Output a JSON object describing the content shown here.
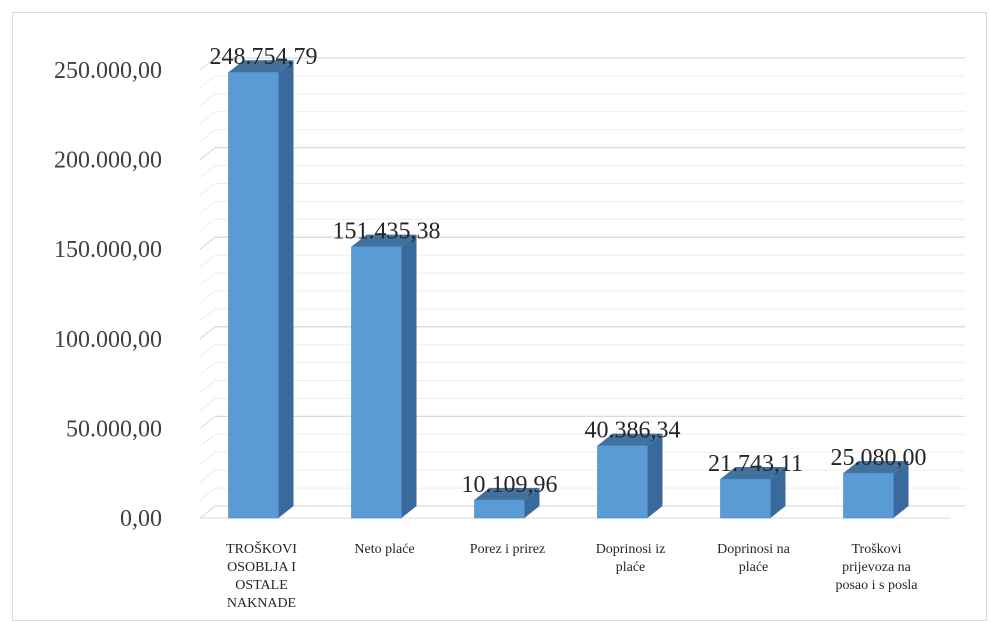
{
  "chart_data": {
    "type": "bar",
    "style": "3d-column",
    "categories": [
      [
        "TROŠKOVI",
        "OSOBLJA I",
        "OSTALE",
        "NAKNADE"
      ],
      [
        "Neto plaće"
      ],
      [
        "Porez i prirez"
      ],
      [
        "Doprinosi iz",
        "plaće"
      ],
      [
        "Doprinosi na",
        "plaće"
      ],
      [
        "Troškovi",
        "prijevoza na",
        "posao i s posla"
      ]
    ],
    "values": [
      248754.79,
      151435.38,
      10109.96,
      40386.34,
      21743.11,
      25080.0
    ],
    "data_labels": [
      "248.754,79",
      "151.435,38",
      "10.109,96",
      "40.386,34",
      "21.743,11",
      "25.080,00"
    ],
    "yticks": [
      {
        "value": 0,
        "label": "0,00"
      },
      {
        "value": 50000,
        "label": "50.000,00"
      },
      {
        "value": 100000,
        "label": "100.000,00"
      },
      {
        "value": 150000,
        "label": "150.000,00"
      },
      {
        "value": 200000,
        "label": "200.000,00"
      },
      {
        "value": 250000,
        "label": "250.000,00"
      }
    ],
    "ylim": [
      0,
      250000
    ],
    "minor_grid_step": 10000,
    "grid": true,
    "title": "",
    "xlabel": "",
    "ylabel": "",
    "colors": {
      "front": "#5b9bd5",
      "side": "#3a6a9b",
      "top": "#41719c",
      "grid_major": "#d9d9d9",
      "grid_minor": "#ededed"
    }
  }
}
